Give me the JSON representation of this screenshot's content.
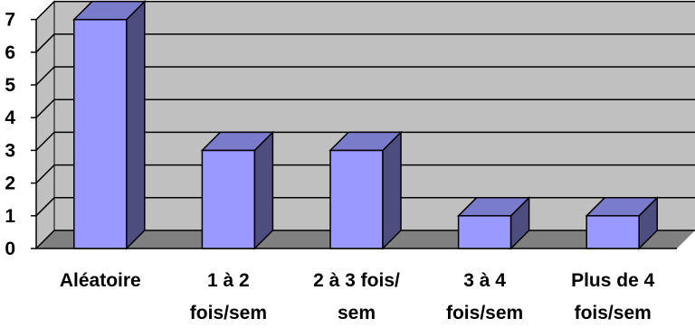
{
  "chart_data": {
    "type": "bar",
    "categories": [
      [
        "Aléatoire"
      ],
      [
        "1 à 2",
        "fois/sem"
      ],
      [
        "2 à 3 fois/",
        "sem"
      ],
      [
        "3 à 4",
        "fois/sem"
      ],
      [
        "Plus de 4",
        "fois/sem"
      ]
    ],
    "values": [
      7,
      3,
      3,
      1,
      1
    ],
    "ylim": [
      0,
      7
    ],
    "yticks": [
      "0",
      "1",
      "2",
      "3",
      "4",
      "5",
      "6",
      "7"
    ],
    "grid": true,
    "style3d": true,
    "colors": {
      "bar_front": "#9999ff",
      "bar_side": "#4d4d80",
      "bar_top": "#7b7bcc",
      "wall": "#c0c0c0",
      "floor": "#808080",
      "grid": "#000000"
    }
  }
}
